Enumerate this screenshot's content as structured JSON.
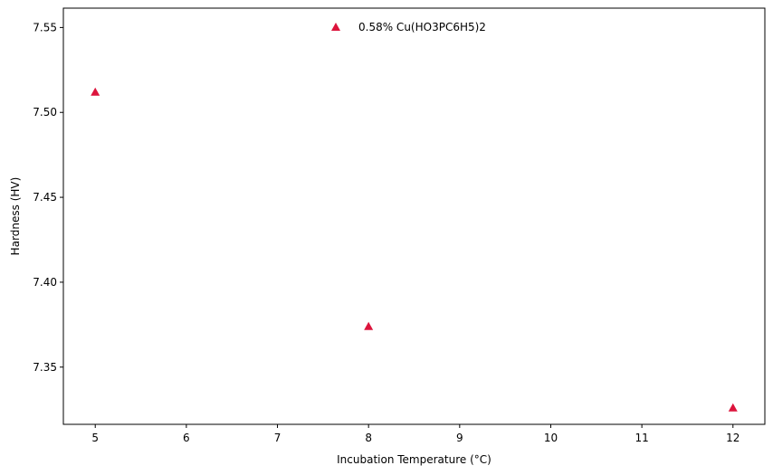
{
  "chart_data": {
    "type": "scatter",
    "title": "",
    "xlabel": "Incubation Temperature (°C)",
    "ylabel": "Hardness (HV)",
    "xlim": [
      4.65,
      12.35
    ],
    "ylim": [
      7.3163,
      7.5614
    ],
    "xticks": [
      5,
      6,
      7,
      8,
      9,
      10,
      11,
      12
    ],
    "yticks": [
      7.35,
      7.4,
      7.45,
      7.5,
      7.55
    ],
    "ytick_labels": [
      "7.35",
      "7.40",
      "7.45",
      "7.50",
      "7.55"
    ],
    "grid": false,
    "legend_position": "top-center",
    "series": [
      {
        "name": "0.58% Cu(HO3PC6H5)2",
        "marker": "triangle-up",
        "color": "#dc143c",
        "x": [
          5,
          8,
          12
        ],
        "y": [
          7.512,
          7.374,
          7.326
        ]
      }
    ]
  }
}
